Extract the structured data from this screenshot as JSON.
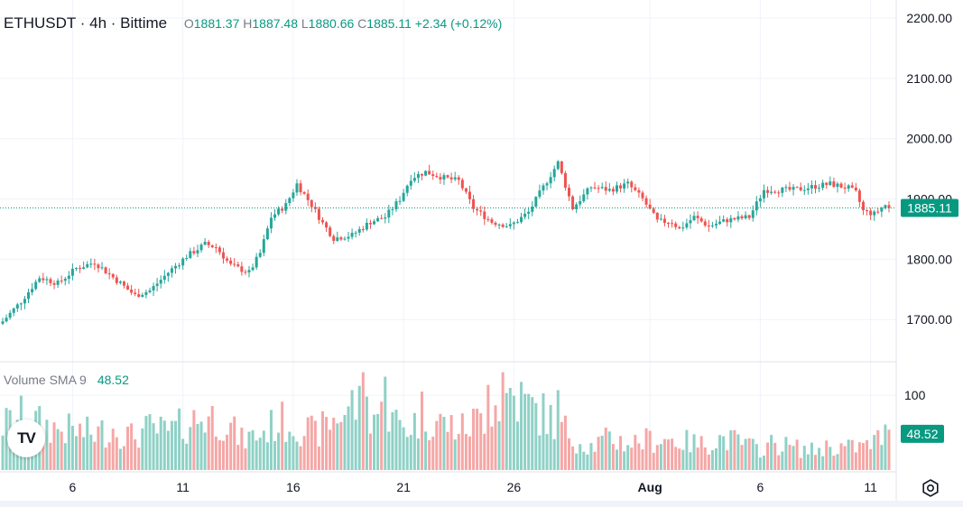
{
  "header": {
    "symbol": "ETHUSDT",
    "interval": "4h",
    "exchange": "Bittime",
    "open_label": "O",
    "open": "1881.37",
    "high_label": "H",
    "high": "1887.48",
    "low_label": "L",
    "low": "1880.66",
    "close_label": "C",
    "close": "1885.11",
    "change": "+2.34 (+0.12%)"
  },
  "volume_panel": {
    "label": "Volume SMA 9",
    "value": "48.52"
  },
  "logo": {
    "text": "TV",
    "icon": "tradingview-logo-icon"
  },
  "settings": {
    "icon": "settings-gear-icon"
  },
  "colors": {
    "up": "#26a69a",
    "down": "#ef5350",
    "up_vol": "#8fd1c6",
    "down_vol": "#f5a7a6",
    "badge": "#089981"
  },
  "chart_data": {
    "type": "candlestick",
    "symbol": "ETHUSDT",
    "interval": "4h",
    "price_axis": {
      "ticks": [
        1700,
        1800,
        1900,
        2000,
        2100,
        2200
      ],
      "labels": [
        "1700.00",
        "1800.00",
        "1900.00",
        "2000.00",
        "2100.00",
        "2200.00"
      ],
      "range": [
        1630,
        2230
      ]
    },
    "volume_axis": {
      "ticks": [
        100
      ],
      "labels": [
        "100"
      ],
      "range": [
        0,
        145
      ]
    },
    "x_axis": {
      "ticks": [
        {
          "index": 19,
          "label": "6"
        },
        {
          "index": 49,
          "label": "11"
        },
        {
          "index": 79,
          "label": "16"
        },
        {
          "index": 109,
          "label": "21"
        },
        {
          "index": 139,
          "label": "26"
        },
        {
          "index": 176,
          "label": "Aug"
        },
        {
          "index": 206,
          "label": "6"
        },
        {
          "index": 236,
          "label": "11"
        }
      ]
    },
    "last_price": "1885.11",
    "last_volume_sma": "48.52",
    "price_path": [
      [
        0,
        1697
      ],
      [
        5,
        1730
      ],
      [
        10,
        1770
      ],
      [
        15,
        1760
      ],
      [
        20,
        1785
      ],
      [
        25,
        1795
      ],
      [
        28,
        1780
      ],
      [
        33,
        1755
      ],
      [
        36,
        1740
      ],
      [
        40,
        1748
      ],
      [
        45,
        1778
      ],
      [
        50,
        1805
      ],
      [
        55,
        1825
      ],
      [
        58,
        1820
      ],
      [
        62,
        1790
      ],
      [
        67,
        1778
      ],
      [
        70,
        1810
      ],
      [
        73,
        1870
      ],
      [
        77,
        1890
      ],
      [
        80,
        1925
      ],
      [
        84,
        1890
      ],
      [
        87,
        1860
      ],
      [
        90,
        1835
      ],
      [
        95,
        1840
      ],
      [
        100,
        1862
      ],
      [
        104,
        1870
      ],
      [
        108,
        1900
      ],
      [
        111,
        1935
      ],
      [
        115,
        1945
      ],
      [
        120,
        1935
      ],
      [
        124,
        1930
      ],
      [
        128,
        1885
      ],
      [
        133,
        1862
      ],
      [
        138,
        1855
      ],
      [
        143,
        1878
      ],
      [
        148,
        1930
      ],
      [
        151,
        1960
      ],
      [
        155,
        1885
      ],
      [
        160,
        1920
      ],
      [
        165,
        1915
      ],
      [
        170,
        1925
      ],
      [
        174,
        1900
      ],
      [
        178,
        1863
      ],
      [
        182,
        1862
      ],
      [
        184,
        1850
      ],
      [
        188,
        1870
      ],
      [
        192,
        1855
      ],
      [
        197,
        1865
      ],
      [
        203,
        1870
      ],
      [
        207,
        1915
      ],
      [
        212,
        1915
      ],
      [
        215,
        1915
      ],
      [
        220,
        1920
      ],
      [
        225,
        1925
      ],
      [
        230,
        1918
      ],
      [
        232,
        1910
      ],
      [
        234,
        1880
      ],
      [
        237,
        1875
      ],
      [
        240,
        1890
      ],
      [
        241,
        1885.11
      ]
    ],
    "volume_path": [
      [
        0,
        60
      ],
      [
        5,
        70
      ],
      [
        10,
        62
      ],
      [
        15,
        55
      ],
      [
        20,
        52
      ],
      [
        25,
        48
      ],
      [
        30,
        56
      ],
      [
        35,
        45
      ],
      [
        40,
        55
      ],
      [
        45,
        50
      ],
      [
        50,
        62
      ],
      [
        55,
        72
      ],
      [
        60,
        68
      ],
      [
        65,
        40
      ],
      [
        70,
        48
      ],
      [
        75,
        65
      ],
      [
        80,
        60
      ],
      [
        85,
        48
      ],
      [
        90,
        68
      ],
      [
        95,
        88
      ],
      [
        100,
        80
      ],
      [
        105,
        68
      ],
      [
        110,
        58
      ],
      [
        115,
        72
      ],
      [
        120,
        62
      ],
      [
        125,
        55
      ],
      [
        130,
        70
      ],
      [
        135,
        92
      ],
      [
        140,
        98
      ],
      [
        143,
        85
      ],
      [
        148,
        72
      ],
      [
        152,
        58
      ],
      [
        156,
        40
      ],
      [
        160,
        32
      ],
      [
        165,
        42
      ],
      [
        170,
        36
      ],
      [
        175,
        40
      ],
      [
        180,
        42
      ],
      [
        185,
        38
      ],
      [
        190,
        34
      ],
      [
        195,
        42
      ],
      [
        200,
        38
      ],
      [
        205,
        28
      ],
      [
        210,
        36
      ],
      [
        215,
        30
      ],
      [
        220,
        26
      ],
      [
        225,
        32
      ],
      [
        230,
        30
      ],
      [
        235,
        32
      ],
      [
        241,
        50
      ]
    ],
    "volume_highlights": [
      [
        98,
        131
      ],
      [
        104,
        125
      ],
      [
        114,
        105
      ],
      [
        132,
        114
      ],
      [
        136,
        131
      ],
      [
        138,
        110
      ],
      [
        151,
        107
      ]
    ],
    "candle_count": 242
  }
}
